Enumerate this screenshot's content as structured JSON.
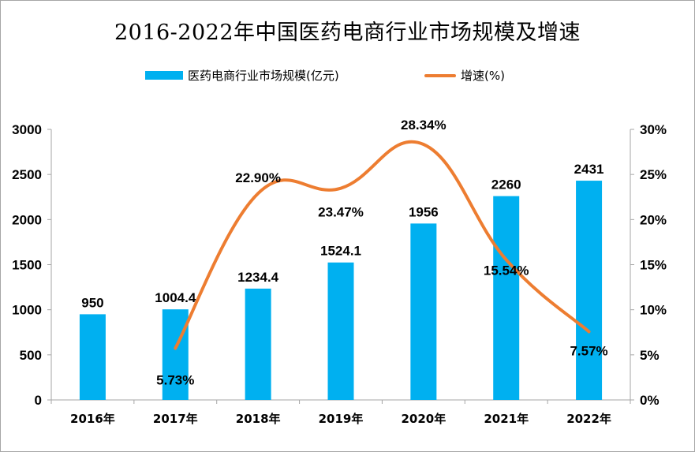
{
  "chart_data": {
    "type": "bar",
    "title": "2016-2022年中国医药电商行业市场规模及增速",
    "categories": [
      "2016年",
      "2017年",
      "2018年",
      "2019年",
      "2020年",
      "2021年",
      "2022年"
    ],
    "series": [
      {
        "name": "医药电商行业市场规模(亿元)",
        "type": "bar",
        "axis": "left",
        "color": "#00b0f0",
        "values": [
          950,
          1004.4,
          1234.4,
          1524.1,
          1956,
          2260,
          2431
        ],
        "labels": [
          "950",
          "1004.4",
          "1234.4",
          "1524.1",
          "1956",
          "2260",
          "2431"
        ]
      },
      {
        "name": "增速(%)",
        "type": "line",
        "axis": "right",
        "color": "#ed7d31",
        "values": [
          null,
          5.73,
          22.9,
          23.47,
          28.34,
          15.54,
          7.57
        ],
        "labels": [
          null,
          "5.73%",
          "22.90%",
          "23.47%",
          "28.34%",
          "15.54%",
          "7.57%"
        ]
      }
    ],
    "y_left": {
      "min": 0,
      "max": 3000,
      "step": 500,
      "ticks": [
        "0",
        "500",
        "1000",
        "1500",
        "2000",
        "2500",
        "3000"
      ]
    },
    "y_right": {
      "min": 0,
      "max": 30,
      "step": 5,
      "ticks": [
        "0%",
        "5%",
        "10%",
        "15%",
        "20%",
        "25%",
        "30%"
      ]
    },
    "legend_position": "top",
    "grid": false
  }
}
